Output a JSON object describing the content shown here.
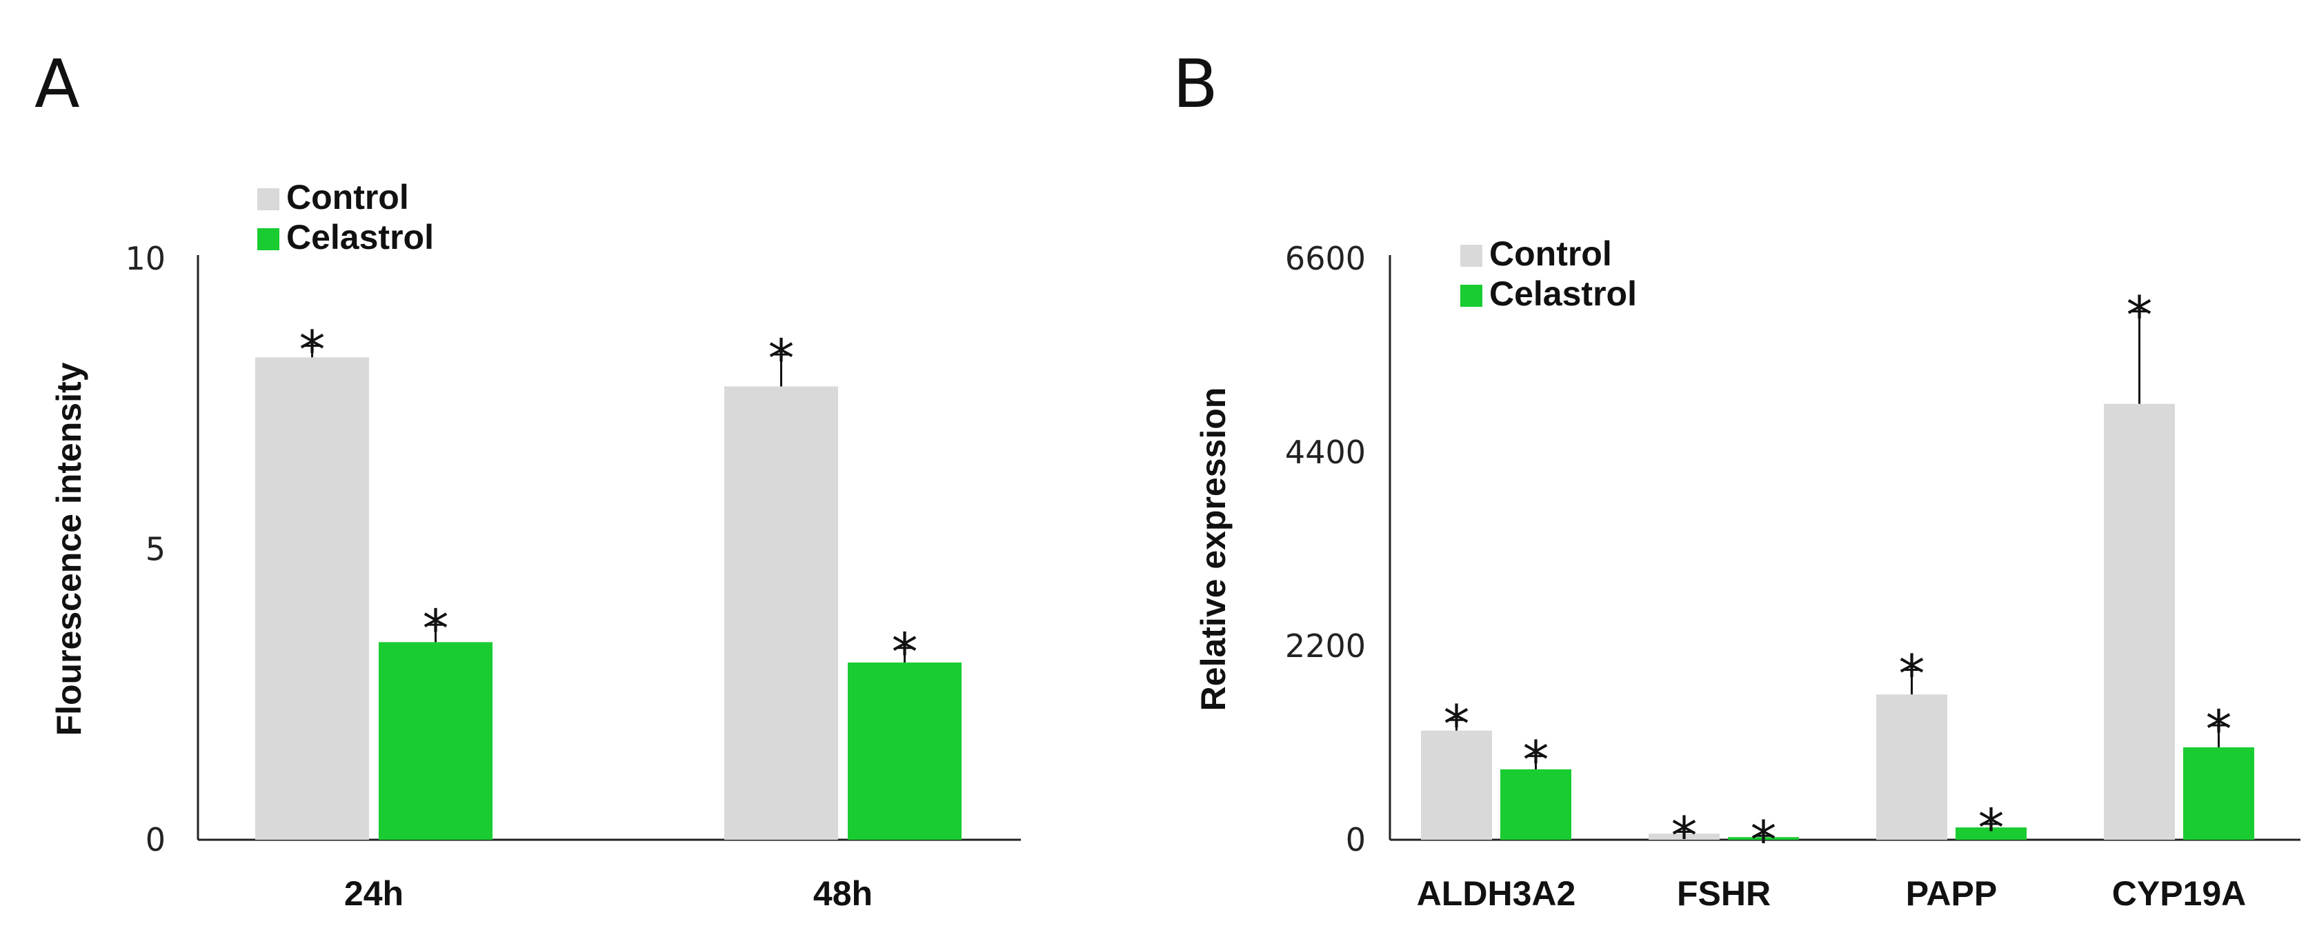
{
  "figure_labels": {
    "a": "A",
    "b": "B"
  },
  "colors": {
    "control": "#d9d9d9",
    "celastrol": "#19cc31"
  },
  "chart_data": [
    {
      "panel": "A",
      "type": "bar",
      "categories": [
        "24h",
        "48h"
      ],
      "series": [
        {
          "name": "Control",
          "values": [
            8.3,
            7.8
          ],
          "errors": [
            0.2,
            0.55
          ]
        },
        {
          "name": "Celastrol",
          "values": [
            3.4,
            3.05
          ],
          "errors": [
            0.3,
            0.25
          ]
        }
      ],
      "significance": [
        [
          "*",
          "*"
        ],
        [
          "*",
          "*"
        ]
      ],
      "ylabel": "Flourescence intensity",
      "ylim": [
        0,
        10
      ],
      "yticks": [
        0,
        5,
        10
      ],
      "legend": "top-left",
      "grid": false
    },
    {
      "panel": "B",
      "type": "bar",
      "categories": [
        "ALDH3A2",
        "FSHR",
        "PAPP",
        "CYP19A"
      ],
      "series": [
        {
          "name": "Control",
          "values": [
            1240,
            70,
            1650,
            4950
          ],
          "errors": [
            120,
            20,
            280,
            1050
          ]
        },
        {
          "name": "Celastrol",
          "values": [
            800,
            30,
            140,
            1050
          ],
          "errors": [
            150,
            15,
            40,
            250
          ]
        }
      ],
      "significance": [
        [
          "*",
          "*",
          "*",
          "*"
        ],
        [
          "*",
          "*",
          "*",
          "*"
        ]
      ],
      "ylabel": "Relative expression",
      "ylim": [
        0,
        6600
      ],
      "yticks": [
        0,
        2200,
        4400,
        6600
      ],
      "legend": "top-left",
      "grid": false
    }
  ]
}
